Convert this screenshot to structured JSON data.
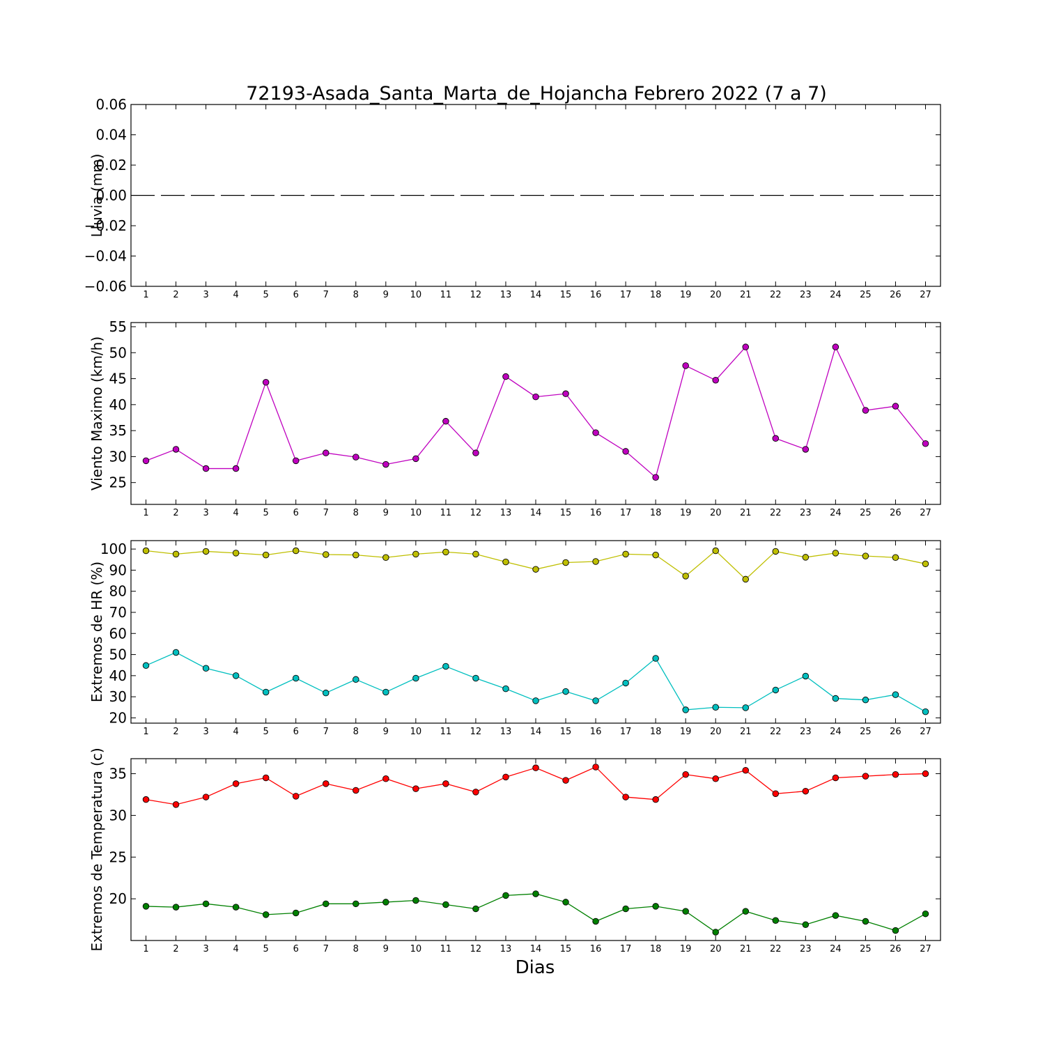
{
  "figure": {
    "title": "72193-Asada_Santa_Marta_de_Hojancha Febrero 2022  (7 a 7)",
    "xlabel": "Dias"
  },
  "chart_data": [
    {
      "type": "line",
      "ylabel": "Lluvia (mm)",
      "x": [
        1,
        2,
        3,
        4,
        5,
        6,
        7,
        8,
        9,
        10,
        11,
        12,
        13,
        14,
        15,
        16,
        17,
        18,
        19,
        20,
        21,
        22,
        23,
        24,
        25,
        26,
        27
      ],
      "xlim": [
        0.5,
        27.5
      ],
      "ylim": [
        -0.06,
        0.06
      ],
      "yticks": [
        -0.06,
        -0.04,
        -0.02,
        0.0,
        0.02,
        0.04,
        0.06
      ],
      "ytick_labels": [
        "−0.06",
        "−0.04",
        "−0.02",
        "0.00",
        "0.02",
        "0.04",
        "0.06"
      ],
      "grid": false,
      "series": [
        {
          "color": "#000000",
          "style": "dashed",
          "markers": false,
          "values": [
            0,
            0,
            0,
            0,
            0,
            0,
            0,
            0,
            0,
            0,
            0,
            0,
            0,
            0,
            0,
            0,
            0,
            0,
            0,
            0,
            0,
            0,
            0,
            0,
            0,
            0,
            0
          ]
        }
      ]
    },
    {
      "type": "line",
      "ylabel": "Viento Maximo (km/h)",
      "x": [
        1,
        2,
        3,
        4,
        5,
        6,
        7,
        8,
        9,
        10,
        11,
        12,
        13,
        14,
        15,
        16,
        17,
        18,
        19,
        20,
        21,
        22,
        23,
        24,
        25,
        26,
        27
      ],
      "xlim": [
        0.5,
        27.5
      ],
      "ylim": [
        20.8,
        55.8
      ],
      "yticks": [
        25,
        30,
        35,
        40,
        45,
        50,
        55
      ],
      "ytick_labels": [
        "25",
        "30",
        "35",
        "40",
        "45",
        "50",
        "55"
      ],
      "grid": false,
      "series": [
        {
          "color": "#bf00bf",
          "style": "solid",
          "markers": true,
          "values": [
            29.2,
            31.4,
            27.7,
            27.7,
            44.3,
            29.2,
            30.7,
            29.9,
            28.5,
            29.6,
            36.8,
            30.7,
            45.4,
            41.5,
            42.1,
            34.6,
            31.0,
            26.0,
            47.5,
            44.7,
            51.1,
            33.5,
            31.4,
            51.1,
            38.9,
            39.7,
            32.5
          ]
        }
      ]
    },
    {
      "type": "line",
      "ylabel": "Extremos de HR (%)",
      "x": [
        1,
        2,
        3,
        4,
        5,
        6,
        7,
        8,
        9,
        10,
        11,
        12,
        13,
        14,
        15,
        16,
        17,
        18,
        19,
        20,
        21,
        22,
        23,
        24,
        25,
        26,
        27
      ],
      "xlim": [
        0.5,
        27.5
      ],
      "ylim": [
        17.5,
        104
      ],
      "yticks": [
        20,
        30,
        40,
        50,
        60,
        70,
        80,
        90,
        100
      ],
      "ytick_labels": [
        "20",
        "30",
        "40",
        "50",
        "60",
        "70",
        "80",
        "90",
        "100"
      ],
      "grid": false,
      "series": [
        {
          "color": "#bfbf00",
          "style": "solid",
          "markers": true,
          "values": [
            99.2,
            97.6,
            98.9,
            98.1,
            97.2,
            99.2,
            97.4,
            97.2,
            96.0,
            97.6,
            98.6,
            97.6,
            93.9,
            90.4,
            93.6,
            94.1,
            97.6,
            97.2,
            87.2,
            99.2,
            85.7,
            98.9,
            96.1,
            98.1,
            96.7,
            96.0,
            93.0
          ]
        },
        {
          "color": "#00bfbf",
          "style": "solid",
          "markers": true,
          "values": [
            44.8,
            51.0,
            43.5,
            40.0,
            32.2,
            38.8,
            31.8,
            38.2,
            32.2,
            38.8,
            44.4,
            38.8,
            33.8,
            28.1,
            32.5,
            28.1,
            36.5,
            48.2,
            23.8,
            25.0,
            24.8,
            33.2,
            39.8,
            29.2,
            28.5,
            31.0,
            22.9
          ]
        }
      ]
    },
    {
      "type": "line",
      "ylabel": "Extremos de Temperatura (c)",
      "x": [
        1,
        2,
        3,
        4,
        5,
        6,
        7,
        8,
        9,
        10,
        11,
        12,
        13,
        14,
        15,
        16,
        17,
        18,
        19,
        20,
        21,
        22,
        23,
        24,
        25,
        26,
        27
      ],
      "xlim": [
        0.5,
        27.5
      ],
      "ylim": [
        15.0,
        36.8
      ],
      "yticks": [
        20,
        25,
        30,
        35
      ],
      "ytick_labels": [
        "20",
        "25",
        "30",
        "35"
      ],
      "grid": false,
      "series": [
        {
          "color": "#ff0000",
          "style": "solid",
          "markers": true,
          "values": [
            31.9,
            31.3,
            32.2,
            33.8,
            34.5,
            32.3,
            33.8,
            33.0,
            34.4,
            33.2,
            33.8,
            32.8,
            34.6,
            35.7,
            34.2,
            35.8,
            32.2,
            31.9,
            34.9,
            34.4,
            35.4,
            32.6,
            32.9,
            34.5,
            34.7,
            34.9,
            35.0
          ]
        },
        {
          "color": "#008000",
          "style": "solid",
          "markers": true,
          "values": [
            19.1,
            19.0,
            19.4,
            19.0,
            18.1,
            18.3,
            19.4,
            19.4,
            19.6,
            19.8,
            19.3,
            18.8,
            20.4,
            20.6,
            19.6,
            17.3,
            18.8,
            19.1,
            18.5,
            16.0,
            18.5,
            17.4,
            16.9,
            18.0,
            17.3,
            16.2,
            18.2
          ]
        }
      ]
    }
  ]
}
